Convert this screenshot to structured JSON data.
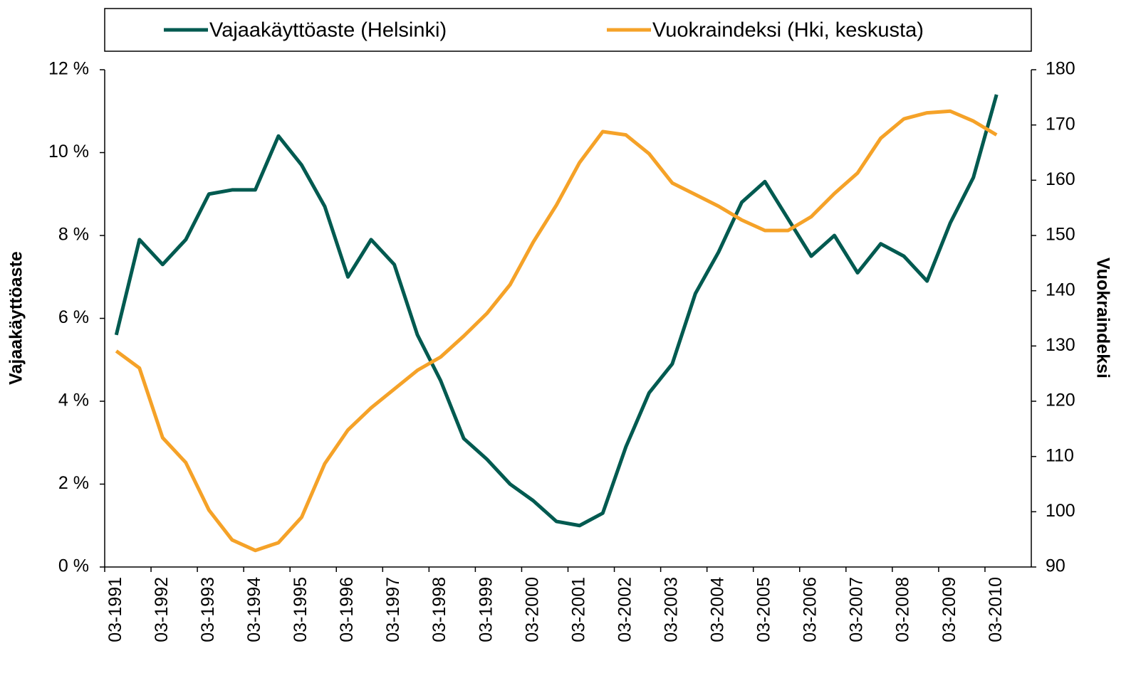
{
  "chart_data": {
    "type": "line",
    "categories": [
      "03-1991",
      null,
      "03-1992",
      null,
      "03-1993",
      null,
      "03-1994",
      null,
      "03-1995",
      null,
      "03-1996",
      null,
      "03-1997",
      null,
      "03-1998",
      null,
      "03-1999",
      null,
      "03-2000",
      null,
      "03-2001",
      null,
      "03-2002",
      null,
      "03-2003",
      null,
      "03-2004",
      null,
      "03-2005",
      null,
      "03-2006",
      null,
      "03-2007",
      null,
      "03-2008",
      null,
      "03-2009",
      null,
      "03-2010",
      null
    ],
    "series": [
      {
        "name": "Vajaakäyttöaste (Helsinki)",
        "color": "#005a50",
        "axis": "y",
        "values": [
          5.6,
          7.9,
          7.3,
          7.9,
          9.0,
          9.1,
          9.1,
          10.4,
          9.7,
          8.7,
          7.0,
          7.9,
          7.3,
          5.6,
          4.5,
          3.1,
          2.6,
          2.0,
          1.6,
          1.1,
          1.0,
          1.3,
          2.9,
          4.2,
          4.9,
          6.6,
          7.6,
          8.8,
          9.3,
          8.4,
          7.5,
          8.0,
          7.1,
          7.8,
          7.5,
          6.9,
          8.3,
          9.4,
          11.4,
          null
        ]
      },
      {
        "name": "Vuokraindeksi (Hki, keskusta)",
        "color": "#f5a228",
        "axis": "y2",
        "values": [
          129.1,
          126.0,
          113.4,
          108.9,
          100.3,
          94.9,
          93.0,
          94.4,
          99.0,
          108.7,
          114.8,
          118.8,
          122.2,
          125.6,
          128.0,
          131.8,
          135.9,
          141.1,
          148.8,
          155.5,
          163.2,
          168.8,
          168.2,
          164.8,
          159.5,
          157.4,
          155.3,
          152.8,
          150.9,
          150.9,
          153.4,
          157.6,
          161.3,
          167.6,
          171.1,
          172.2,
          172.5,
          170.7,
          168.2,
          null
        ]
      }
    ],
    "ylabel": "Vajaakäyttöaste",
    "y2label": "Vuokraindeksi",
    "ylim": [
      0,
      12
    ],
    "yticks": [
      {
        "value": 0,
        "label": "0 %"
      },
      {
        "value": 2,
        "label": "2 %"
      },
      {
        "value": 4,
        "label": "4 %"
      },
      {
        "value": 6,
        "label": "6 %"
      },
      {
        "value": 8,
        "label": "8 %"
      },
      {
        "value": 10,
        "label": "10 %"
      },
      {
        "value": 12,
        "label": "12 %"
      }
    ],
    "y2lim": [
      90,
      180
    ],
    "y2ticks": [
      90,
      100,
      110,
      120,
      130,
      140,
      150,
      160,
      170,
      180
    ],
    "legend": "top",
    "grid": false
  }
}
